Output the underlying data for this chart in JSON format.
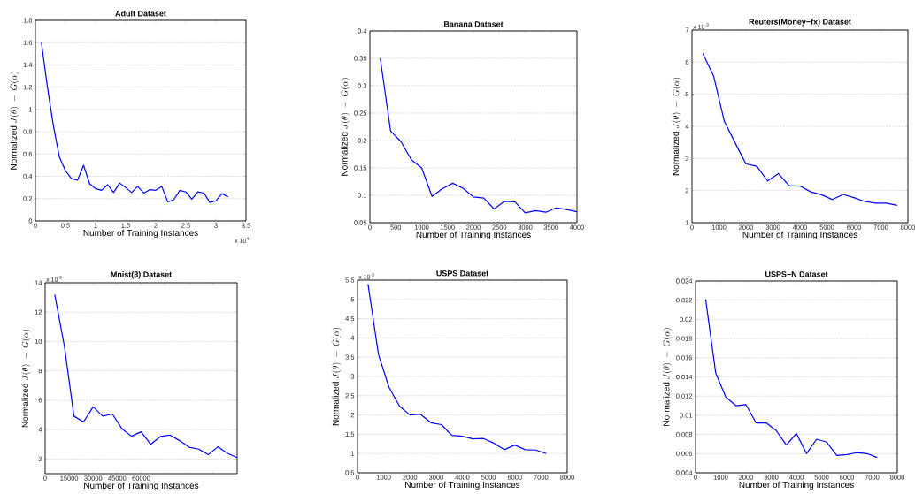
{
  "chart_data": [
    {
      "type": "line",
      "title": "Adult Dataset",
      "xlabel": "Number of Training Instances",
      "ylabel": "\\mathrm{Normalized}\\ J(\\theta)\\ -\\ G(\\alpha)",
      "annotations": [
        "x 10$^{4}$"
      ],
      "grid": "y",
      "xlim": [
        0,
        3.5
      ],
      "xticks": [
        0,
        0.5,
        1,
        1.5,
        2,
        2.5,
        3,
        3.5
      ],
      "ylim": [
        0,
        1.8
      ],
      "yticks": [
        0,
        0.2,
        0.4,
        0.6,
        0.8,
        1,
        1.2,
        1.4,
        1.6,
        1.8
      ],
      "x": [
        0.1,
        0.2,
        0.3,
        0.4,
        0.5,
        0.6,
        0.7,
        0.8,
        0.9,
        1.0,
        1.1,
        1.2,
        1.3,
        1.4,
        1.5,
        1.6,
        1.7,
        1.8,
        1.9,
        2.0,
        2.1,
        2.2,
        2.3,
        2.4,
        2.5,
        2.6,
        2.7,
        2.8,
        2.9,
        3.0,
        3.1,
        3.2
      ],
      "series": [
        {
          "color": "#0000ff",
          "values": [
            1.6,
            1.2,
            0.85,
            0.57,
            0.45,
            0.38,
            0.365,
            0.5,
            0.335,
            0.29,
            0.275,
            0.325,
            0.255,
            0.34,
            0.3,
            0.255,
            0.31,
            0.25,
            0.28,
            0.275,
            0.31,
            0.17,
            0.19,
            0.275,
            0.26,
            0.195,
            0.26,
            0.25,
            0.165,
            0.18,
            0.245,
            0.215
          ]
        }
      ]
    },
    {
      "type": "line",
      "title": "Banana Dataset",
      "xlabel": "Number of Training Instances",
      "ylabel": "\\mathrm{Normalized}\\ J(\\theta)\\ -\\ G(\\alpha)",
      "grid": "y",
      "xlim": [
        0,
        4000
      ],
      "xticks": [
        0,
        500,
        1000,
        1500,
        2000,
        2500,
        3000,
        3500,
        4000
      ],
      "ylim": [
        0.05,
        0.4
      ],
      "yticks": [
        0.05,
        0.1,
        0.15,
        0.2,
        0.25,
        0.3,
        0.35,
        0.4
      ],
      "x": [
        200,
        400,
        600,
        800,
        1000,
        1200,
        1400,
        1600,
        1800,
        2000,
        2200,
        2400,
        2600,
        2800,
        3000,
        3200,
        3400,
        3600,
        3800,
        4000
      ],
      "series": [
        {
          "color": "#0000ff",
          "values": [
            0.35,
            0.217,
            0.198,
            0.165,
            0.15,
            0.098,
            0.112,
            0.122,
            0.113,
            0.097,
            0.095,
            0.075,
            0.089,
            0.088,
            0.068,
            0.072,
            0.069,
            0.077,
            0.074,
            0.07
          ]
        }
      ]
    },
    {
      "type": "line",
      "title": "Reuters(Money−fx) Dataset",
      "xlabel": "Number of Training Instances",
      "ylabel": "\\mathrm{Normalized}\\ J(\\theta)\\ -\\ G(\\alpha)",
      "annotations": [
        "x 10$^{-3}$"
      ],
      "grid": "y",
      "xlim": [
        0,
        8000
      ],
      "xticks": [
        0,
        1000,
        2000,
        3000,
        4000,
        5000,
        6000,
        7000,
        8000
      ],
      "ylim": [
        1,
        7
      ],
      "yticks": [
        1,
        2,
        3,
        4,
        5,
        6,
        7
      ],
      "x": [
        400,
        800,
        1200,
        1600,
        2000,
        2400,
        2800,
        3200,
        3600,
        4000,
        4400,
        4800,
        5200,
        5600,
        6000,
        6400,
        6800,
        7200,
        7600
      ],
      "series": [
        {
          "color": "#0000ff",
          "values": [
            6.27,
            5.57,
            4.15,
            3.48,
            2.83,
            2.76,
            2.3,
            2.53,
            2.15,
            2.14,
            1.96,
            1.87,
            1.72,
            1.88,
            1.78,
            1.66,
            1.61,
            1.61,
            1.54
          ]
        }
      ]
    },
    {
      "type": "line",
      "title": "Mnist(8) Dataset",
      "xlabel": "Number of Training Instances",
      "ylabel": "\\mathrm{Normalized}\\ J(\\theta)\\ -\\ G(\\alpha)",
      "annotations": [
        "x 10$^{-3}$"
      ],
      "grid": "y",
      "xlim": [
        0,
        120000
      ],
      "xticks": [
        0,
        15000,
        30000,
        45000,
        60000,
        {
          "value": 75000,
          "label": null
        },
        {
          "value": 90000,
          "label": null
        },
        {
          "value": 105000,
          "label": null
        }
      ],
      "ylim": [
        1,
        14
      ],
      "yticks": [
        2,
        4,
        6,
        8,
        10,
        12,
        14
      ],
      "x": [
        6000,
        12000,
        18000,
        24000,
        30000,
        36000,
        42000,
        48000,
        54000,
        60000,
        66000,
        72000,
        78000,
        84000,
        90000,
        96000,
        102000,
        108000,
        114000,
        120000
      ],
      "series": [
        {
          "color": "#0000ff",
          "values": [
            13.2,
            9.7,
            4.92,
            4.52,
            5.55,
            4.92,
            5.06,
            4.06,
            3.55,
            3.85,
            3.0,
            3.53,
            3.63,
            3.25,
            2.8,
            2.67,
            2.3,
            2.83,
            2.38,
            2.1
          ]
        }
      ]
    },
    {
      "type": "line",
      "title": "USPS Dataset",
      "xlabel": "Number of Training Instances",
      "ylabel": "\\mathrm{Normalized}\\ J(\\theta)\\ -\\ G(\\alpha)",
      "annotations": [
        "x 10$^{-3}$"
      ],
      "grid": "y",
      "xlim": [
        0,
        8000
      ],
      "xticks": [
        0,
        1000,
        2000,
        3000,
        4000,
        5000,
        6000,
        7000,
        8000
      ],
      "ylim": [
        0.5,
        5.5
      ],
      "yticks": [
        0.5,
        1,
        1.5,
        2,
        2.5,
        3,
        3.5,
        4,
        4.5,
        5,
        5.5
      ],
      "x": [
        400,
        800,
        1200,
        1600,
        2000,
        2400,
        2800,
        3200,
        3600,
        4000,
        4400,
        4800,
        5200,
        5600,
        6000,
        6400,
        6800,
        7200
      ],
      "series": [
        {
          "color": "#0000ff",
          "values": [
            5.4,
            3.57,
            2.72,
            2.23,
            2.0,
            2.02,
            1.8,
            1.75,
            1.47,
            1.45,
            1.38,
            1.39,
            1.27,
            1.1,
            1.22,
            1.1,
            1.09,
            1.0
          ]
        }
      ]
    },
    {
      "type": "line",
      "title": "USPS−N Dataset",
      "xlabel": "Number of Training Instances",
      "ylabel": "\\mathrm{Normalized}\\ J(\\theta)\\ -\\ G(\\alpha)",
      "grid": "y",
      "xlim": [
        0,
        8000
      ],
      "xticks": [
        0,
        1000,
        2000,
        3000,
        4000,
        5000,
        6000,
        7000,
        8000
      ],
      "ylim": [
        0.004,
        0.024
      ],
      "yticks": [
        0.004,
        0.006,
        0.008,
        0.01,
        0.012,
        0.014,
        0.016,
        0.018,
        0.02,
        0.022,
        0.024
      ],
      "x": [
        400,
        800,
        1200,
        1600,
        2000,
        2400,
        2800,
        3200,
        3600,
        4000,
        4400,
        4800,
        5200,
        5600,
        6000,
        6400,
        6800,
        7200
      ],
      "series": [
        {
          "color": "#0000ff",
          "values": [
            0.0221,
            0.0144,
            0.0119,
            0.011,
            0.0111,
            0.0092,
            0.0092,
            0.0084,
            0.0069,
            0.0081,
            0.006,
            0.0075,
            0.0072,
            0.0058,
            0.0059,
            0.0061,
            0.006,
            0.0056
          ]
        }
      ]
    }
  ]
}
